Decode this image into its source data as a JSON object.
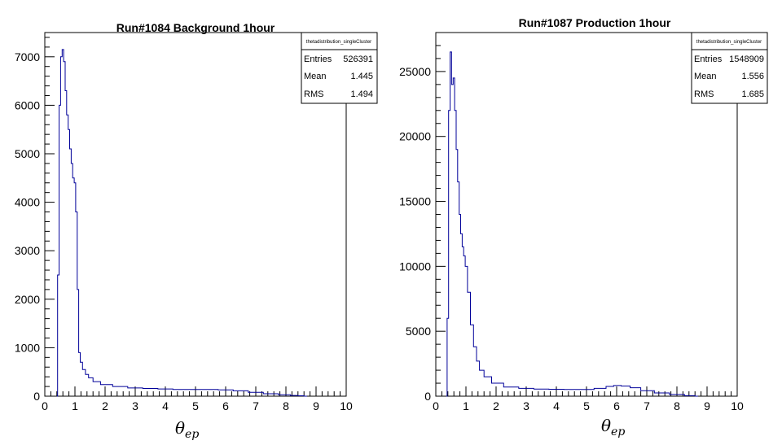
{
  "colors": {
    "histogram": "#000099",
    "frame": "#000000"
  },
  "chart_data": [
    {
      "type": "line",
      "title": "Run#1084 Background 1hour",
      "xlabel": "θ",
      "xlabel_sub": "ep",
      "ylabel": "",
      "xlim": [
        0,
        10
      ],
      "ylim": [
        0,
        7500
      ],
      "xticks": [
        0,
        1,
        2,
        3,
        4,
        5,
        6,
        7,
        8,
        9,
        10
      ],
      "yticks": [
        0,
        1000,
        2000,
        3000,
        4000,
        5000,
        6000,
        7000
      ],
      "stats": {
        "name": "thetadistribution_singleCluster",
        "rows": [
          {
            "label": "Entries",
            "value": "526391"
          },
          {
            "label": "Mean",
            "value": "1.445"
          },
          {
            "label": "RMS",
            "value": "1.494"
          }
        ]
      },
      "series": [
        {
          "x": [
            0.4,
            0.45,
            0.5,
            0.55,
            0.6,
            0.65,
            0.7,
            0.75,
            0.8,
            0.85,
            0.9,
            0.95,
            1.0,
            1.05,
            1.1,
            1.15,
            1.2,
            1.3,
            1.4,
            1.5,
            1.7,
            2.0,
            2.5,
            3.0,
            3.5,
            4.0,
            4.5,
            5.0,
            5.5,
            6.0,
            6.5,
            7.0,
            7.5,
            8.0,
            8.3,
            8.5,
            8.7
          ],
          "y": [
            0,
            2500,
            6000,
            7000,
            7150,
            6900,
            6300,
            5800,
            5500,
            5100,
            4800,
            4500,
            4400,
            3800,
            2200,
            900,
            700,
            550,
            450,
            380,
            300,
            240,
            200,
            170,
            160,
            150,
            140,
            140,
            140,
            130,
            110,
            80,
            50,
            30,
            15,
            8,
            0
          ]
        }
      ]
    },
    {
      "type": "line",
      "title": "Run#1087 Production 1hour",
      "xlabel": "θ",
      "xlabel_sub": "ep",
      "ylabel": "",
      "xlim": [
        0,
        10
      ],
      "ylim": [
        0,
        28000
      ],
      "xticks": [
        0,
        1,
        2,
        3,
        4,
        5,
        6,
        7,
        8,
        9,
        10
      ],
      "yticks": [
        0,
        5000,
        10000,
        15000,
        20000,
        25000
      ],
      "stats": {
        "name": "thetadistribution_singleCluster",
        "rows": [
          {
            "label": "Entries",
            "value": "1548909"
          },
          {
            "label": "Mean",
            "value": "1.556"
          },
          {
            "label": "RMS",
            "value": "1.685"
          }
        ]
      },
      "series": [
        {
          "x": [
            0.35,
            0.4,
            0.45,
            0.5,
            0.55,
            0.6,
            0.65,
            0.7,
            0.75,
            0.8,
            0.85,
            0.9,
            0.95,
            1.0,
            1.1,
            1.2,
            1.3,
            1.4,
            1.5,
            1.7,
            2.0,
            2.5,
            3.0,
            3.5,
            4.0,
            4.5,
            5.0,
            5.5,
            5.8,
            6.0,
            6.3,
            6.6,
            7.0,
            7.5,
            8.0,
            8.5,
            8.7
          ],
          "y": [
            0,
            6000,
            22000,
            26500,
            24000,
            24500,
            22000,
            19000,
            16500,
            14000,
            12500,
            11500,
            10800,
            10000,
            8000,
            5500,
            3800,
            2700,
            2000,
            1500,
            1000,
            700,
            600,
            550,
            530,
            520,
            520,
            600,
            750,
            820,
            780,
            650,
            420,
            250,
            130,
            40,
            0
          ]
        }
      ]
    }
  ]
}
